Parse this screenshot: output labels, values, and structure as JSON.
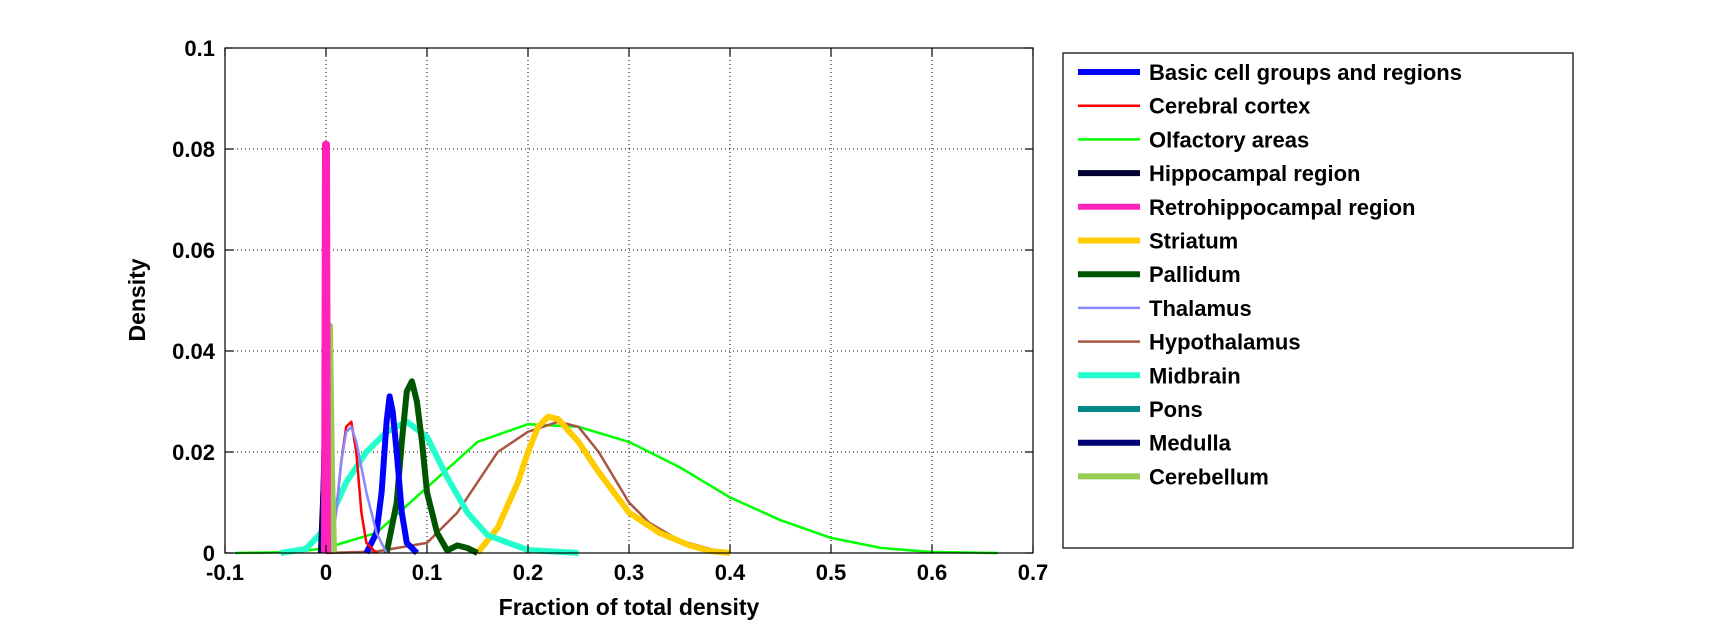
{
  "chart_data": {
    "type": "line",
    "title": "",
    "xlabel": "Fraction of total density",
    "ylabel": "Density",
    "xlim": [
      -0.1,
      0.7
    ],
    "ylim": [
      0,
      0.1
    ],
    "xticks": [
      -0.1,
      0,
      0.1,
      0.2,
      0.3,
      0.4,
      0.5,
      0.6,
      0.7
    ],
    "xtick_labels": [
      "-0.1",
      "0",
      "0.1",
      "0.2",
      "0.3",
      "0.4",
      "0.5",
      "0.6",
      "0.7"
    ],
    "yticks": [
      0,
      0.02,
      0.04,
      0.06,
      0.08,
      0.1
    ],
    "ytick_labels": [
      "0",
      "0.02",
      "0.04",
      "0.06",
      "0.08",
      "0.1"
    ],
    "grid": true,
    "legend_position": "outside-right",
    "series": [
      {
        "name": "Basic cell groups and regions",
        "color": "#0000ff",
        "width": "thick",
        "x": [
          0.04,
          0.05,
          0.055,
          0.06,
          0.063,
          0.066,
          0.07,
          0.075,
          0.08,
          0.09
        ],
        "y": [
          0,
          0.004,
          0.012,
          0.026,
          0.031,
          0.028,
          0.02,
          0.008,
          0.002,
          0
        ]
      },
      {
        "name": "Cerebral cortex",
        "color": "#ff0000",
        "width": "thin",
        "x": [
          0.0,
          0.01,
          0.015,
          0.02,
          0.025,
          0.03,
          0.035,
          0.04,
          0.05
        ],
        "y": [
          0,
          0.008,
          0.018,
          0.025,
          0.026,
          0.02,
          0.008,
          0.002,
          0
        ]
      },
      {
        "name": "Olfactory areas",
        "color": "#00ff00",
        "width": "thin",
        "x": [
          -0.09,
          -0.03,
          0.0,
          0.05,
          0.1,
          0.15,
          0.2,
          0.25,
          0.3,
          0.35,
          0.4,
          0.45,
          0.5,
          0.55,
          0.6,
          0.665
        ],
        "y": [
          0,
          0.0002,
          0.001,
          0.004,
          0.013,
          0.022,
          0.0255,
          0.025,
          0.022,
          0.017,
          0.011,
          0.0065,
          0.003,
          0.001,
          0.0002,
          0
        ]
      },
      {
        "name": "Hippocampal region",
        "color": "#000033",
        "width": "thick",
        "x": [
          -0.005,
          -0.002,
          0.0,
          0.002,
          0.004,
          0.007
        ],
        "y": [
          0,
          0.015,
          0.04,
          0.028,
          0.008,
          0
        ]
      },
      {
        "name": "Retrohippocampal region",
        "color": "#ff22bb",
        "width": "thick",
        "x": [
          -0.002,
          -0.001,
          0.0,
          0.001,
          0.002
        ],
        "y": [
          0,
          0.081,
          0.081,
          0.081,
          0
        ]
      },
      {
        "name": "Striatum",
        "color": "#ffcc00",
        "width": "thick",
        "x": [
          0.15,
          0.17,
          0.19,
          0.2,
          0.21,
          0.22,
          0.23,
          0.25,
          0.27,
          0.3,
          0.33,
          0.36,
          0.38,
          0.4
        ],
        "y": [
          0,
          0.005,
          0.014,
          0.02,
          0.025,
          0.027,
          0.0265,
          0.022,
          0.016,
          0.008,
          0.004,
          0.0015,
          0.0004,
          0
        ]
      },
      {
        "name": "Pallidum",
        "color": "#005500",
        "width": "thick",
        "x": [
          0.06,
          0.07,
          0.075,
          0.08,
          0.085,
          0.09,
          0.095,
          0.1,
          0.11,
          0.12,
          0.13,
          0.14,
          0.15
        ],
        "y": [
          0,
          0.01,
          0.022,
          0.032,
          0.034,
          0.03,
          0.022,
          0.012,
          0.004,
          0.0005,
          0.0015,
          0.001,
          0
        ]
      },
      {
        "name": "Thalamus",
        "color": "#8888ff",
        "width": "thin",
        "x": [
          0.005,
          0.01,
          0.015,
          0.02,
          0.025,
          0.03,
          0.04,
          0.05,
          0.06
        ],
        "y": [
          0,
          0.008,
          0.018,
          0.024,
          0.025,
          0.022,
          0.012,
          0.004,
          0
        ]
      },
      {
        "name": "Hypothalamus",
        "color": "#aa5544",
        "width": "thin",
        "x": [
          0.0,
          0.05,
          0.1,
          0.13,
          0.15,
          0.17,
          0.2,
          0.23,
          0.25,
          0.27,
          0.3,
          0.32,
          0.35,
          0.38,
          0.4
        ],
        "y": [
          0,
          0.0003,
          0.002,
          0.008,
          0.014,
          0.02,
          0.024,
          0.026,
          0.025,
          0.02,
          0.01,
          0.006,
          0.0025,
          0.0008,
          0
        ]
      },
      {
        "name": "Midbrain",
        "color": "#22ffcc",
        "width": "thick",
        "x": [
          -0.045,
          -0.02,
          0.0,
          0.02,
          0.04,
          0.06,
          0.08,
          0.1,
          0.12,
          0.14,
          0.16,
          0.2,
          0.25
        ],
        "y": [
          0,
          0.0008,
          0.005,
          0.014,
          0.02,
          0.024,
          0.026,
          0.023,
          0.015,
          0.008,
          0.0035,
          0.0006,
          0
        ]
      },
      {
        "name": "Pons",
        "color": "#008888",
        "width": "thick",
        "x": [
          -0.003,
          -0.001,
          0.001,
          0.003,
          0.005
        ],
        "y": [
          0,
          0.02,
          0.043,
          0.02,
          0
        ]
      },
      {
        "name": "Medulla",
        "color": "#000077",
        "width": "thick",
        "x": [
          -0.004,
          -0.001,
          0.001,
          0.003,
          0.005
        ],
        "y": [
          0,
          0.025,
          0.05,
          0.022,
          0
        ]
      },
      {
        "name": "Cerebellum",
        "color": "#99cc55",
        "width": "thick",
        "x": [
          0.0,
          0.002,
          0.004,
          0.006,
          0.008
        ],
        "y": [
          0,
          0.015,
          0.045,
          0.015,
          0
        ]
      }
    ]
  }
}
